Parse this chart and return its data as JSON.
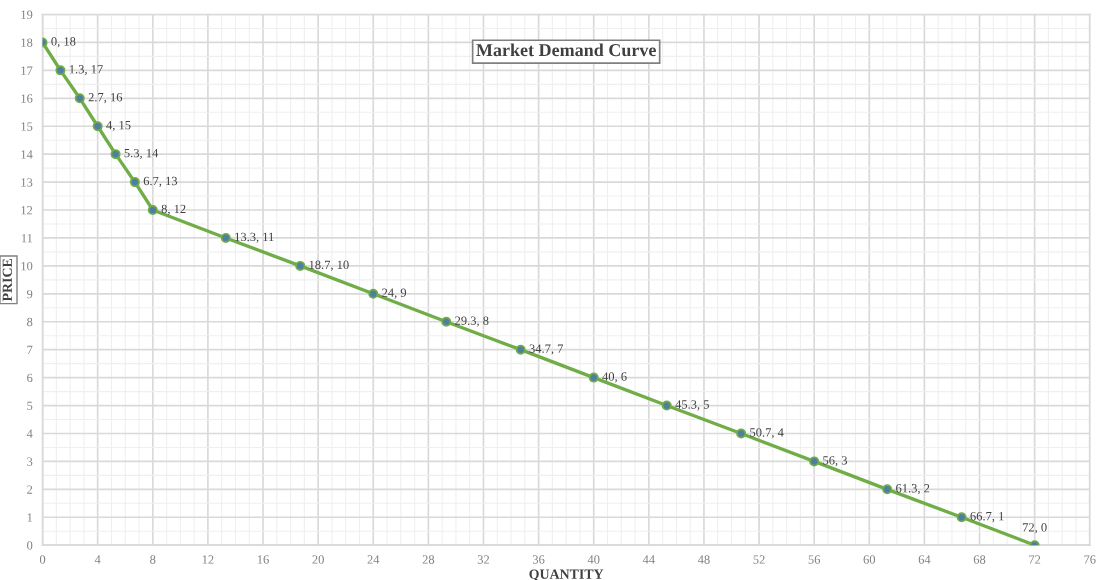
{
  "chart_data": {
    "type": "line",
    "title": "Market Demand Curve",
    "xlabel": "QUANTITY",
    "ylabel": "PRICE",
    "x": [
      0,
      1.3,
      2.7,
      4,
      5.3,
      6.7,
      8,
      13.3,
      18.7,
      24,
      29.3,
      34.7,
      40,
      45.3,
      50.7,
      56,
      61.3,
      66.7,
      72
    ],
    "series": [
      {
        "color": "#70ad47",
        "values": [
          18,
          17,
          16,
          15,
          14,
          13,
          12,
          11,
          10,
          9,
          8,
          7,
          6,
          5,
          4,
          3,
          2,
          1,
          0
        ],
        "value_labels": [
          "0, 18",
          "1.3, 17",
          "2.7, 16",
          "4, 15",
          "5.3, 14",
          "6.7, 13",
          "8, 12",
          "13.3, 11",
          "18.7, 10",
          "24, 9",
          "29.3, 8",
          "34.7, 7",
          "40, 6",
          "45.3, 5",
          "50.7, 4",
          "56, 3",
          "61.3, 2",
          "66.7, 1",
          "72, 0"
        ]
      }
    ],
    "xlim": [
      0,
      76
    ],
    "xticks": [
      0,
      4,
      8,
      12,
      16,
      20,
      24,
      28,
      32,
      36,
      40,
      44,
      48,
      52,
      56,
      60,
      64,
      68,
      72,
      76
    ],
    "ylim": [
      0,
      19
    ],
    "yticks": [
      0,
      1,
      2,
      3,
      4,
      5,
      6,
      7,
      8,
      9,
      10,
      11,
      12,
      13,
      14,
      15,
      16,
      17,
      18,
      19
    ],
    "grid": true,
    "marker": "circle",
    "line_style": "solid"
  }
}
